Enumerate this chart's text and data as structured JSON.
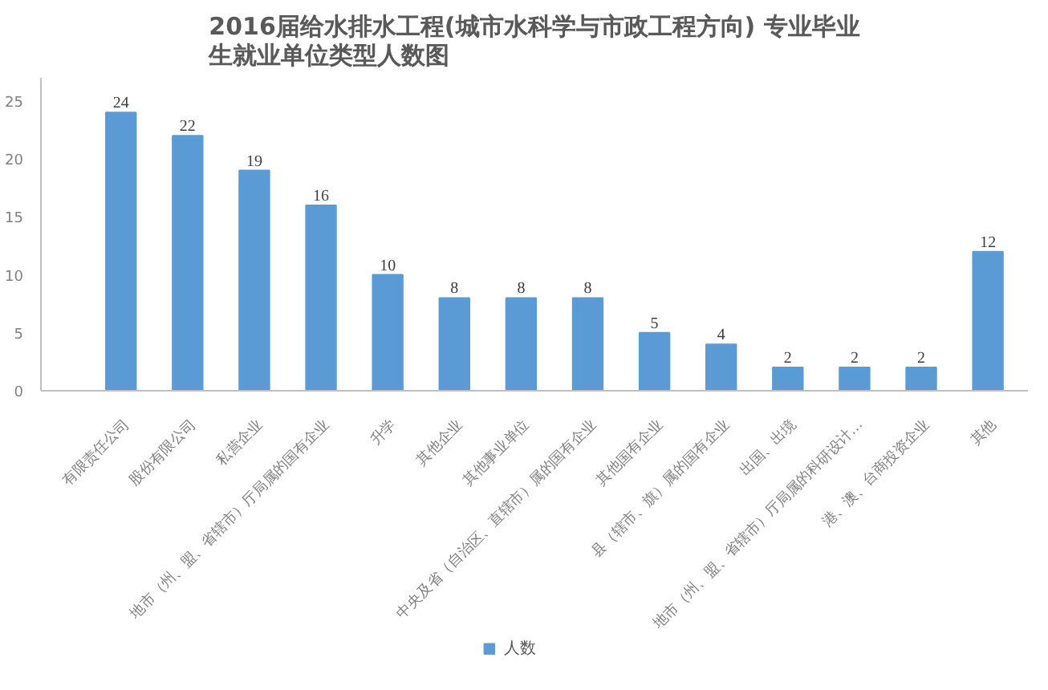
{
  "chart_data": {
    "type": "bar",
    "title": "2016届给水排水工程(城市水科学与市政工程方向) 专业毕业生就业单位类型人数图",
    "categories": [
      "有限责任公司",
      "股份有限公司",
      "私营企业",
      "地市（州、盟、省辖市）厅局属的国有企业",
      "升学",
      "其他企业",
      "其他事业单位",
      "中央及省（自治区、直辖市）属的国有企业",
      "其他国有企业",
      "县（辖市、旗）属的国有企业",
      "出国、出境",
      "地市（州、盟、省辖市）厅局属的科研设计…",
      "港、澳、台商投资企业",
      "其他"
    ],
    "series": [
      {
        "name": "人数",
        "color": "#5b9bd5",
        "values": [
          24,
          22,
          19,
          16,
          10,
          8,
          8,
          8,
          5,
          4,
          2,
          2,
          2,
          12
        ]
      }
    ],
    "ylim": [
      0,
      27
    ],
    "yticks": [
      0,
      5,
      10,
      15,
      20,
      25
    ],
    "grid": false,
    "legend": "bottom",
    "data_labels": true
  }
}
